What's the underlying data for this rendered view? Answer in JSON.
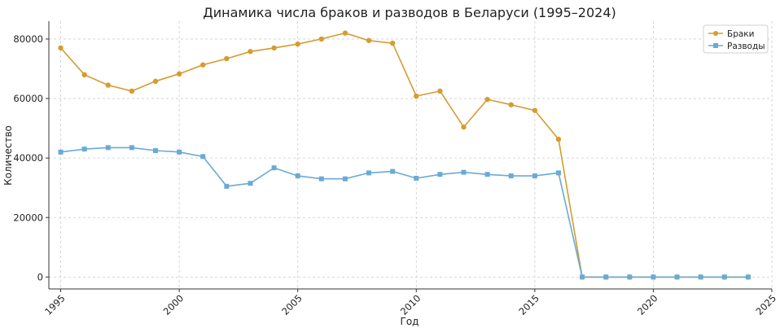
{
  "chart_data": {
    "type": "line",
    "title": "Динамика числа браков и разводов в Беларуси (1995–2024)",
    "xlabel": "Год",
    "ylabel": "Количество",
    "x": [
      1995,
      1996,
      1997,
      1998,
      1999,
      2000,
      2001,
      2002,
      2003,
      2004,
      2005,
      2006,
      2007,
      2008,
      2009,
      2010,
      2011,
      2012,
      2013,
      2014,
      2015,
      2016,
      2017,
      2018,
      2019,
      2020,
      2021,
      2022,
      2023,
      2024
    ],
    "series": [
      {
        "name": "Браки",
        "color": "#d69c2f",
        "marker": "circle",
        "values": [
          77000,
          68000,
          64500,
          62500,
          65800,
          68300,
          71300,
          73400,
          75800,
          77000,
          78300,
          80000,
          82000,
          79500,
          78600,
          60800,
          62500,
          50400,
          59700,
          57900,
          56000,
          46300,
          0,
          0,
          0,
          0,
          0,
          0,
          0,
          0
        ]
      },
      {
        "name": "Разводы",
        "color": "#6aaad5",
        "marker": "square",
        "values": [
          42000,
          43000,
          43500,
          43500,
          42500,
          42000,
          40500,
          30500,
          31500,
          36700,
          34000,
          33000,
          33000,
          35000,
          35500,
          33200,
          34500,
          35200,
          34500,
          34000,
          34000,
          35000,
          0,
          0,
          0,
          0,
          0,
          0,
          0,
          0
        ]
      }
    ],
    "xticks": [
      "1995",
      "2000",
      "2005",
      "2010",
      "2015",
      "2020",
      "2025"
    ],
    "yticks": [
      "0",
      "20000",
      "40000",
      "60000",
      "80000"
    ],
    "xlim": [
      1994.5,
      2025
    ],
    "ylim": [
      -4000,
      86000
    ],
    "grid": true,
    "legend": "top-right"
  }
}
